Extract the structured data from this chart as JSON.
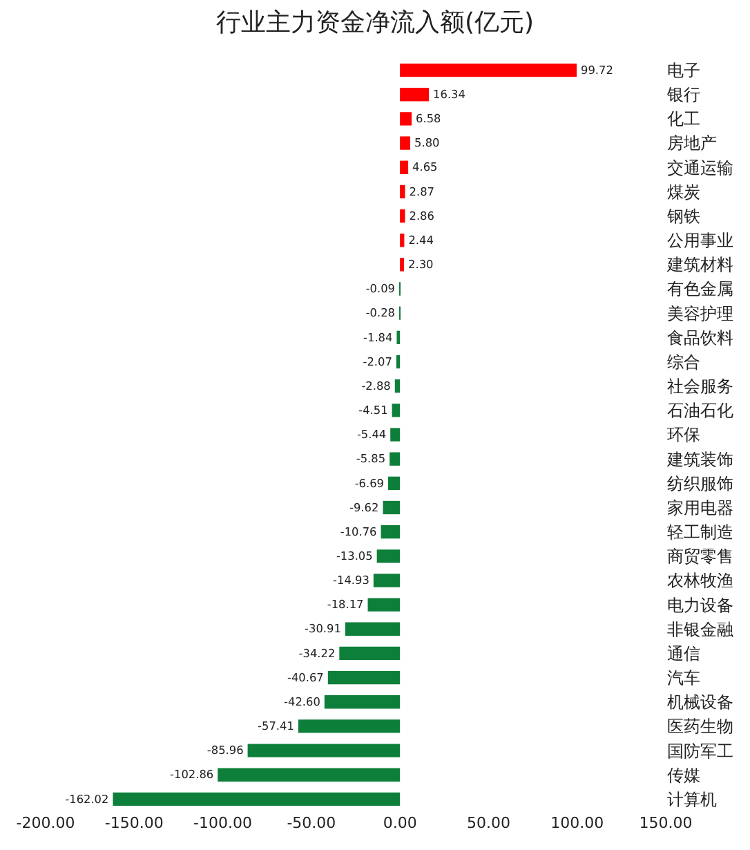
{
  "chart_data": {
    "type": "bar",
    "orientation": "horizontal",
    "title": "行业主力资金净流入额(亿元)",
    "categories": [
      "电子",
      "银行",
      "化工",
      "房地产",
      "交通运输",
      "煤炭",
      "钢铁",
      "公用事业",
      "建筑材料",
      "有色金属",
      "美容护理",
      "食品饮料",
      "综合",
      "社会服务",
      "石油石化",
      "环保",
      "建筑装饰",
      "纺织服饰",
      "家用电器",
      "轻工制造",
      "商贸零售",
      "农林牧渔",
      "电力设备",
      "非银金融",
      "通信",
      "汽车",
      "机械设备",
      "医药生物",
      "国防军工",
      "传媒",
      "计算机"
    ],
    "values": [
      99.72,
      16.34,
      6.58,
      5.8,
      4.65,
      2.87,
      2.86,
      2.44,
      2.3,
      -0.09,
      -0.28,
      -1.84,
      -2.07,
      -2.88,
      -4.51,
      -5.44,
      -5.85,
      -6.69,
      -9.62,
      -10.76,
      -13.05,
      -14.93,
      -18.17,
      -30.91,
      -34.22,
      -40.67,
      -42.6,
      -57.41,
      -85.96,
      -102.86,
      -162.02
    ],
    "value_labels": [
      "99.72",
      "16.34",
      "6.58",
      "5.80",
      "4.65",
      "2.87",
      "2.86",
      "2.44",
      "2.30",
      "-0.09",
      "-0.28",
      "-1.84",
      "-2.07",
      "-2.88",
      "-4.51",
      "-5.44",
      "-5.85",
      "-6.69",
      "-9.62",
      "-10.76",
      "-13.05",
      "-14.93",
      "-18.17",
      "-30.91",
      "-34.22",
      "-40.67",
      "-42.60",
      "-57.41",
      "-85.96",
      "-102.86",
      "-162.02"
    ],
    "colors": [
      "#ff0000",
      "#ff0000",
      "#ff0000",
      "#ff0000",
      "#ff0000",
      "#ff0000",
      "#ff0000",
      "#ff0000",
      "#ff0000",
      "#0e7f3a",
      "#0e7f3a",
      "#0e7f3a",
      "#0e7f3a",
      "#0e7f3a",
      "#0e7f3a",
      "#0e7f3a",
      "#0e7f3a",
      "#0e7f3a",
      "#0e7f3a",
      "#0e7f3a",
      "#0e7f3a",
      "#0e7f3a",
      "#0e7f3a",
      "#0e7f3a",
      "#0e7f3a",
      "#0e7f3a",
      "#0e7f3a",
      "#0e7f3a",
      "#0e7f3a",
      "#0e7f3a",
      "#0e7f3a"
    ],
    "xlim": [
      -200,
      150
    ],
    "xticks": [
      {
        "value": -200,
        "label": "-200.00"
      },
      {
        "value": -150,
        "label": "-150.00"
      },
      {
        "value": -100,
        "label": "-100.00"
      },
      {
        "value": -50,
        "label": "-50.00"
      },
      {
        "value": 0,
        "label": "0.00"
      },
      {
        "value": 50,
        "label": "50.00"
      },
      {
        "value": 100,
        "label": "100.00"
      },
      {
        "value": 150,
        "label": "150.00"
      }
    ],
    "legend": false
  }
}
